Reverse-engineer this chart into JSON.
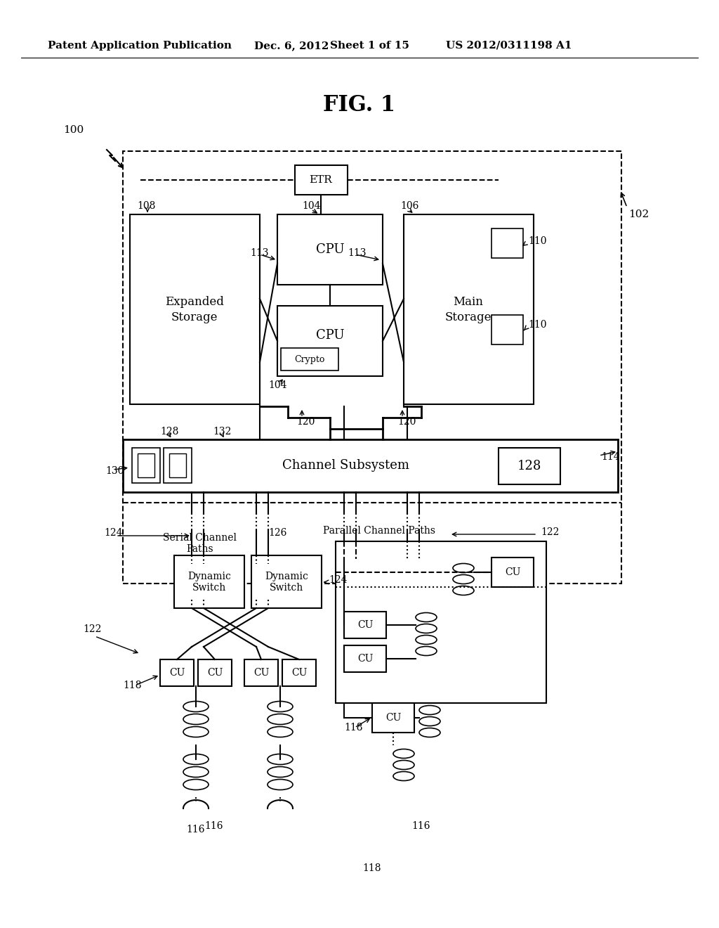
{
  "bg_color": "#ffffff",
  "header_text": "Patent Application Publication",
  "header_date": "Dec. 6, 2012",
  "header_sheet": "Sheet 1 of 15",
  "header_patent": "US 2012/0311198 A1",
  "fig_title": "FIG. 1"
}
